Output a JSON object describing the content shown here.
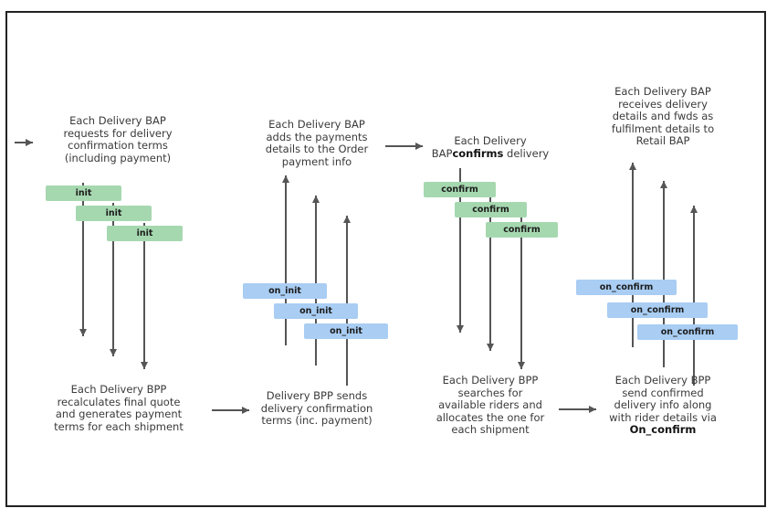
{
  "stage1": {
    "bap_text": [
      "Each Delivery BAP",
      "requests for delivery",
      "confirmation terms",
      "(including payment)"
    ],
    "bpp_text": [
      "Each Delivery BPP",
      "recalculates final quote",
      "and generates payment",
      "terms for each shipment"
    ],
    "msg": [
      "init",
      "init",
      "init"
    ],
    "msg_color": "#a6d8b0"
  },
  "stage2": {
    "bap_text": [
      "Each Delivery BAP",
      "adds the payments",
      "details to the Order",
      "payment info"
    ],
    "bpp_text": [
      "Delivery BPP sends",
      "delivery confirmation",
      "terms (inc. payment)"
    ],
    "msg": [
      "on_init",
      "on_init",
      "on_init"
    ],
    "msg_color": "#a9cdf3"
  },
  "stage3": {
    "bap_text": [
      "Each Delivery"
    ],
    "bap_prefix": "BAP",
    "bap_bold": "confirms",
    "bap_suffix": " delivery",
    "bpp_text": [
      "Each Delivery BPP",
      "searches for",
      "available riders and",
      "allocates the one for",
      "each shipment"
    ],
    "msg": [
      "confirm",
      "confirm",
      "confirm"
    ]
  },
  "stage4": {
    "bap_text": [
      "Each Delivery BAP",
      "receives delivery",
      "details and fwds as",
      "fulfilment details to",
      "Retail BAP"
    ],
    "bpp_text": [
      "Each Delivery BPP",
      "send confirmed",
      "delivery info along",
      "with rider details via"
    ],
    "bpp_bold": "On_confirm",
    "msg": [
      "on_confirm",
      "on_confirm",
      "on_confirm"
    ]
  },
  "colors": {
    "arrow": "#555555",
    "frame": "#222222"
  }
}
